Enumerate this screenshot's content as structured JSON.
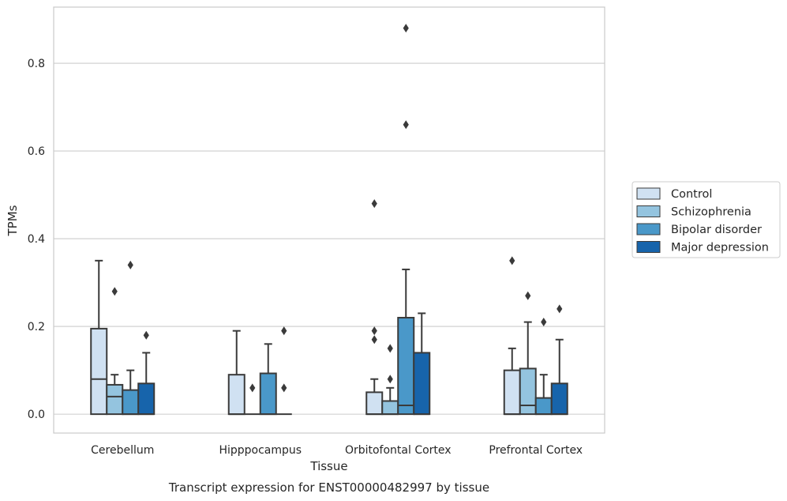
{
  "chart_data": {
    "type": "box",
    "title": "",
    "xlabel": "Tissue",
    "ylabel": "TPMs",
    "caption": "Transcript expression for ENST00000482997 by tissue",
    "ylim": [
      -0.043,
      0.928
    ],
    "yticks": [
      0.0,
      0.2,
      0.4,
      0.6,
      0.8
    ],
    "ytick_labels": [
      "0.0",
      "0.2",
      "0.4",
      "0.6",
      "0.8"
    ],
    "grid": "horizontal",
    "legend_position": "right",
    "categories": [
      "Cerebellum",
      "Hipppocampus",
      "Orbitofontal Cortex",
      "Prefrontal Cortex"
    ],
    "series": [
      {
        "name": "Control",
        "color": "#d0e1f2",
        "boxes": [
          {
            "whislo": 0.0,
            "q1": 0.0,
            "med": 0.08,
            "q3": 0.195,
            "whishi": 0.35,
            "fliers": []
          },
          {
            "whislo": 0.0,
            "q1": 0.0,
            "med": 0.0,
            "q3": 0.09,
            "whishi": 0.19,
            "fliers": []
          },
          {
            "whislo": 0.0,
            "q1": 0.0,
            "med": 0.0,
            "q3": 0.05,
            "whishi": 0.08,
            "fliers": [
              0.17,
              0.19,
              0.48
            ]
          },
          {
            "whislo": 0.0,
            "q1": 0.0,
            "med": 0.0,
            "q3": 0.1,
            "whishi": 0.15,
            "fliers": [
              0.35
            ]
          }
        ]
      },
      {
        "name": "Schizophrenia",
        "color": "#94c4df",
        "boxes": [
          {
            "whislo": 0.0,
            "q1": 0.0,
            "med": 0.04,
            "q3": 0.067,
            "whishi": 0.09,
            "fliers": [
              0.28
            ]
          },
          {
            "whislo": 0.0,
            "q1": 0.0,
            "med": 0.0,
            "q3": 0.0,
            "whishi": 0.0,
            "fliers": [
              0.06
            ]
          },
          {
            "whislo": 0.0,
            "q1": 0.0,
            "med": 0.0,
            "q3": 0.03,
            "whishi": 0.06,
            "fliers": [
              0.08,
              0.15
            ]
          },
          {
            "whislo": 0.0,
            "q1": 0.0,
            "med": 0.02,
            "q3": 0.104,
            "whishi": 0.21,
            "fliers": [
              0.27
            ]
          }
        ]
      },
      {
        "name": "Bipolar disorder",
        "color": "#4a98c9",
        "boxes": [
          {
            "whislo": 0.0,
            "q1": 0.0,
            "med": 0.0,
            "q3": 0.055,
            "whishi": 0.1,
            "fliers": [
              0.34
            ]
          },
          {
            "whislo": 0.0,
            "q1": 0.0,
            "med": 0.0,
            "q3": 0.093,
            "whishi": 0.16,
            "fliers": []
          },
          {
            "whislo": 0.0,
            "q1": 0.0,
            "med": 0.02,
            "q3": 0.22,
            "whishi": 0.33,
            "fliers": [
              0.66,
              0.88
            ]
          },
          {
            "whislo": 0.0,
            "q1": 0.0,
            "med": 0.0,
            "q3": 0.037,
            "whishi": 0.09,
            "fliers": [
              0.21
            ]
          }
        ]
      },
      {
        "name": "Major depression",
        "color": "#1764ab",
        "boxes": [
          {
            "whislo": 0.0,
            "q1": 0.0,
            "med": 0.0,
            "q3": 0.07,
            "whishi": 0.14,
            "fliers": [
              0.18
            ]
          },
          {
            "whislo": 0.0,
            "q1": 0.0,
            "med": 0.0,
            "q3": 0.0,
            "whishi": 0.0,
            "fliers": [
              0.06,
              0.19
            ]
          },
          {
            "whislo": 0.0,
            "q1": 0.0,
            "med": 0.0,
            "q3": 0.14,
            "whishi": 0.23,
            "fliers": []
          },
          {
            "whislo": 0.0,
            "q1": 0.0,
            "med": 0.0,
            "q3": 0.07,
            "whishi": 0.17,
            "fliers": [
              0.24
            ]
          }
        ]
      }
    ]
  }
}
